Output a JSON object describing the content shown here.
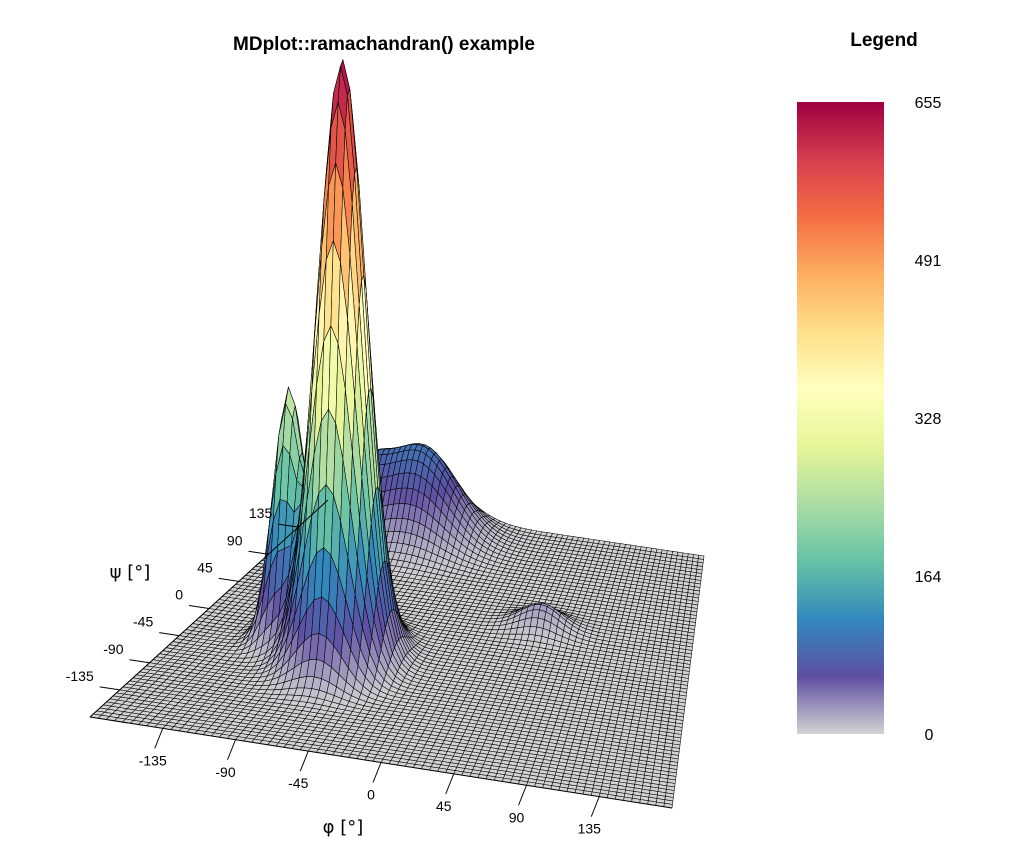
{
  "chart_data": {
    "type": "surface3d",
    "title": "MDplot::ramachandran() example",
    "xlabel": "φ [°]",
    "ylabel": "ψ [°]",
    "x_ticks": [
      "-135",
      "-90",
      "-45",
      "0",
      "45",
      "90",
      "135"
    ],
    "y_ticks": [
      "-135",
      "-90",
      "-45",
      "0",
      "45",
      "90",
      "135"
    ],
    "xlim": [
      -180,
      180
    ],
    "ylim": [
      -180,
      180
    ],
    "zlim": [
      0,
      655
    ],
    "peaks": [
      {
        "phi": -65,
        "psi": -42,
        "height": 655
      },
      {
        "phi": -110,
        "psi": -25,
        "height": 265
      },
      {
        "phi": -75,
        "psi": 150,
        "height": 95
      },
      {
        "phi": -130,
        "psi": 150,
        "height": 60
      },
      {
        "phi": 60,
        "psi": 45,
        "height": 25
      }
    ],
    "legend": {
      "title": "Legend",
      "ticks": [
        "655",
        "491",
        "328",
        "164",
        "0"
      ],
      "colors": [
        "#9e0142",
        "#d53e4f",
        "#f46d43",
        "#fdae61",
        "#fee08b",
        "#ffffbf",
        "#e6f598",
        "#abdda4",
        "#66c2a5",
        "#3288bd",
        "#5e4fa2",
        "#d3d3d3"
      ]
    }
  }
}
